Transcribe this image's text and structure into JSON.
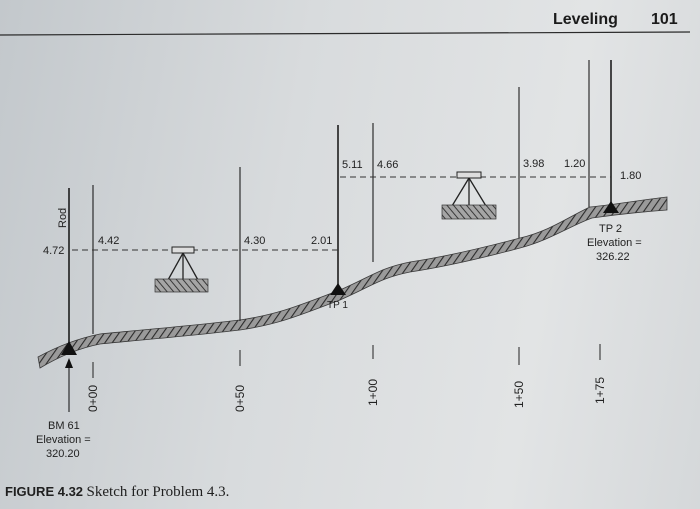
{
  "header": {
    "section": "Leveling",
    "page_number": "101"
  },
  "figure": {
    "caption_label": "FIGURE 4.32",
    "caption_text": "Sketch for Problem 4.3.",
    "rod_label": "Rod",
    "readings": {
      "bm_rod": "4.72",
      "bs1": "4.42",
      "ifs_0_50": "4.30",
      "fs_tp1": "2.01",
      "bs_tp1": "5.11",
      "ifs_1_00": "4.66",
      "ifs_1_50": "3.98",
      "ifs_1_75": "1.20",
      "fs_tp2": "1.80"
    },
    "stations": [
      "0+00",
      "0+50",
      "1+00",
      "1+50",
      "1+75"
    ],
    "bm": {
      "name": "BM 61",
      "elev_label": "Elevation =",
      "elev_value": "320.20"
    },
    "tp1": {
      "name": "TP 1"
    },
    "tp2": {
      "name": "TP 2",
      "elev_label": "Elevation =",
      "elev_value": "326.22"
    }
  }
}
